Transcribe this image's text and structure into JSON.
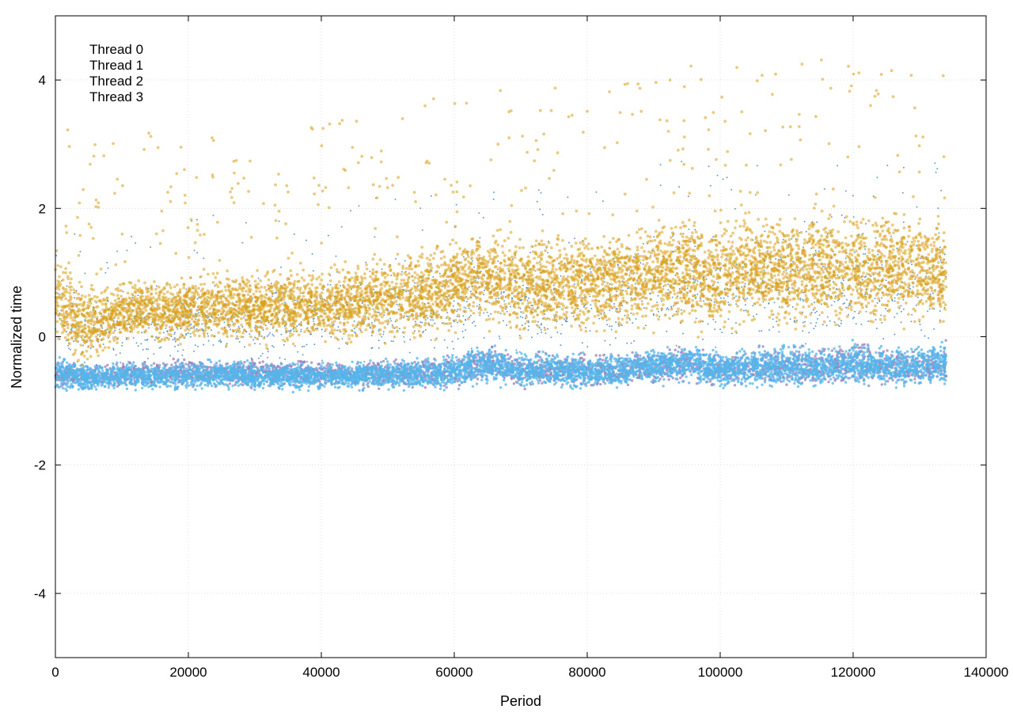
{
  "chart_data": {
    "type": "scatter",
    "title": "",
    "xlabel": "Period",
    "ylabel": "Normalized time",
    "xlim": [
      0,
      140000
    ],
    "ylim": [
      -5,
      5
    ],
    "x_ticks": [
      0,
      20000,
      40000,
      60000,
      80000,
      100000,
      120000,
      140000
    ],
    "y_ticks": [
      -4,
      -2,
      0,
      2,
      4
    ],
    "grid": true,
    "legend_position": "top-left",
    "series": [
      {
        "name": "Thread 0",
        "color": "#9b7fb8",
        "x": [
          0,
          5000,
          10000,
          15000,
          20000,
          25000,
          30000,
          35000,
          40000,
          45000,
          50000,
          55000,
          60000,
          65000,
          70000,
          75000,
          80000,
          85000,
          90000,
          95000,
          100000,
          105000,
          110000,
          115000,
          120000,
          125000,
          130000,
          134000
        ],
        "y_low": [
          -0.85,
          -0.85,
          -0.85,
          -0.85,
          -0.85,
          -0.8,
          -0.85,
          -0.85,
          -0.85,
          -0.85,
          -0.85,
          -0.85,
          -0.85,
          -0.7,
          -0.85,
          -0.85,
          -0.85,
          -0.85,
          -0.8,
          -0.75,
          -0.85,
          -0.85,
          -0.85,
          -0.85,
          -0.8,
          -0.85,
          -0.85,
          -0.8
        ],
        "y_high": [
          -0.3,
          -0.4,
          -0.3,
          -0.3,
          -0.3,
          -0.3,
          -0.3,
          -0.3,
          -0.3,
          -0.3,
          -0.3,
          -0.3,
          -0.2,
          -0.1,
          -0.2,
          -0.2,
          -0.2,
          -0.2,
          -0.1,
          -0.1,
          -0.2,
          -0.1,
          -0.1,
          -0.1,
          0.0,
          -0.1,
          -0.1,
          0.0
        ]
      },
      {
        "name": "Thread 1",
        "color": "#3a7cb4",
        "x": [
          0,
          5000,
          10000,
          15000,
          20000,
          25000,
          30000,
          35000,
          40000,
          45000,
          50000,
          55000,
          60000,
          65000,
          70000,
          75000,
          80000,
          85000,
          90000,
          95000,
          100000,
          105000,
          110000,
          115000,
          120000,
          125000,
          130000,
          134000
        ],
        "y_low": [
          -0.6,
          -0.6,
          -0.6,
          -0.6,
          -0.6,
          -0.6,
          -0.6,
          -0.6,
          -0.6,
          -0.6,
          -0.6,
          -0.6,
          -0.5,
          -0.4,
          -0.5,
          -0.5,
          -0.5,
          -0.5,
          -0.4,
          -0.4,
          -0.5,
          -0.4,
          -0.4,
          -0.4,
          -0.3,
          -0.4,
          -0.4,
          -0.3
        ],
        "y_high": [
          1.2,
          0.8,
          1.0,
          1.0,
          1.1,
          1.1,
          1.1,
          1.2,
          1.2,
          1.3,
          1.4,
          1.4,
          1.6,
          1.8,
          1.6,
          1.7,
          1.7,
          1.7,
          1.9,
          2.0,
          1.8,
          2.0,
          2.0,
          2.1,
          2.1,
          2.0,
          2.0,
          1.9
        ]
      },
      {
        "name": "Thread 2",
        "color": "#56b4e9",
        "x": [
          0,
          5000,
          10000,
          15000,
          20000,
          25000,
          30000,
          35000,
          40000,
          45000,
          50000,
          55000,
          60000,
          65000,
          70000,
          75000,
          80000,
          85000,
          90000,
          95000,
          100000,
          105000,
          110000,
          115000,
          120000,
          125000,
          130000,
          134000
        ],
        "y_low": [
          -0.9,
          -0.88,
          -0.88,
          -0.88,
          -0.88,
          -0.85,
          -0.88,
          -0.88,
          -0.88,
          -0.88,
          -0.88,
          -0.88,
          -0.85,
          -0.8,
          -0.85,
          -0.85,
          -0.85,
          -0.85,
          -0.8,
          -0.75,
          -0.85,
          -0.85,
          -0.85,
          -0.85,
          -0.8,
          -0.85,
          -0.85,
          -0.8
        ],
        "y_high": [
          -0.2,
          -0.4,
          -0.35,
          -0.35,
          -0.35,
          -0.3,
          -0.35,
          -0.35,
          -0.35,
          -0.35,
          -0.3,
          -0.3,
          -0.2,
          -0.05,
          -0.2,
          -0.2,
          -0.2,
          -0.2,
          -0.1,
          -0.05,
          -0.2,
          -0.1,
          -0.1,
          -0.1,
          0.0,
          -0.1,
          -0.1,
          0.0
        ]
      },
      {
        "name": "Thread 3",
        "color": "#d9a01a",
        "x": [
          0,
          5000,
          10000,
          15000,
          20000,
          25000,
          30000,
          35000,
          40000,
          45000,
          50000,
          55000,
          60000,
          65000,
          70000,
          75000,
          80000,
          85000,
          90000,
          95000,
          100000,
          105000,
          110000,
          115000,
          120000,
          125000,
          130000,
          134000
        ],
        "y_low": [
          -0.4,
          -0.6,
          -0.2,
          -0.2,
          -0.2,
          -0.2,
          -0.2,
          -0.2,
          -0.2,
          -0.2,
          -0.2,
          -0.2,
          -0.1,
          0.0,
          -0.1,
          -0.1,
          -0.1,
          -0.1,
          0.0,
          0.0,
          -0.1,
          0.0,
          0.0,
          0.0,
          0.0,
          0.0,
          0.0,
          0.0
        ],
        "y_high": [
          1.6,
          0.9,
          1.0,
          1.0,
          1.1,
          1.1,
          1.1,
          1.2,
          1.2,
          1.3,
          1.4,
          1.5,
          1.7,
          1.9,
          1.7,
          1.8,
          1.8,
          1.8,
          2.0,
          2.1,
          1.9,
          2.1,
          2.1,
          2.2,
          2.2,
          2.1,
          2.1,
          2.0
        ]
      }
    ]
  }
}
